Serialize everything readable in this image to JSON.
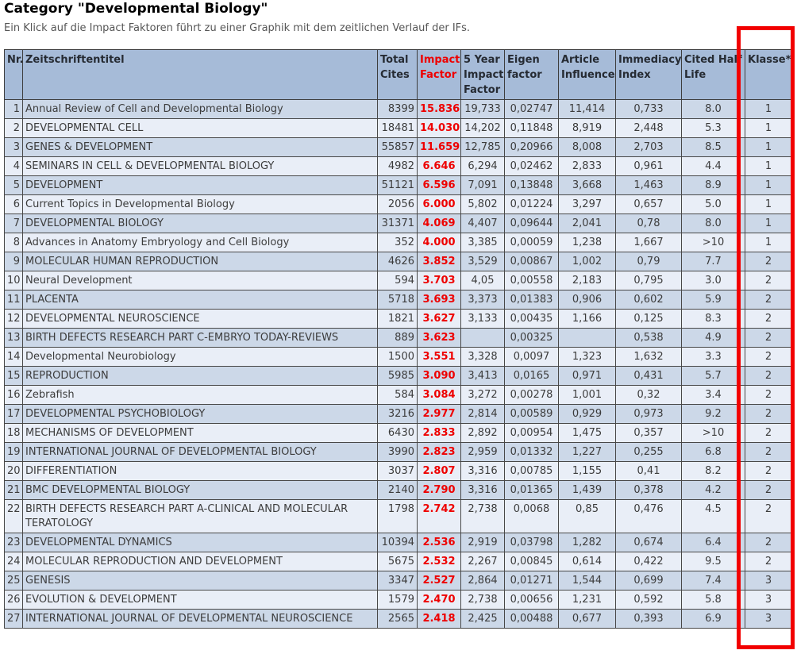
{
  "page": {
    "title": "Category \"Developmental Biology\"",
    "subtitle": "Ein Klick auf die Impact Faktoren führt zu einer Graphik mit dem zeitlichen Verlauf der IFs."
  },
  "colors": {
    "header_bg": "#a6bbd8",
    "row_odd_bg": "#ccd8e8",
    "row_even_bg": "#e9eef7",
    "impact_factor_red": "#ee0000",
    "highlight_box_red": "#f20000",
    "border": "#484848"
  },
  "annotation": {
    "type": "red-highlight-box",
    "highlighted_column": "Klasse*"
  },
  "table": {
    "columns": [
      {
        "id": "nr",
        "label": "Nr."
      },
      {
        "id": "title",
        "label": "Zeitschriftentitel"
      },
      {
        "id": "total_cites",
        "label": "Total Cites"
      },
      {
        "id": "impact_factor",
        "label": "Impact Factor"
      },
      {
        "id": "five_year_impact_factor",
        "label": "5 Year Impact Factor"
      },
      {
        "id": "eigenfactor",
        "label": "Eigen factor"
      },
      {
        "id": "article_influence",
        "label": "Article Influence"
      },
      {
        "id": "immediacy_index",
        "label": "Immediacy Index"
      },
      {
        "id": "cited_half_life",
        "label": "Cited Half Life"
      },
      {
        "id": "klasse",
        "label": "Klasse*"
      }
    ],
    "rows": [
      [
        "1",
        "Annual Review of Cell and Developmental Biology",
        "8399",
        "15.836",
        "19,733",
        "0,02747",
        "11,414",
        "0,733",
        "8.0",
        "1"
      ],
      [
        "2",
        "DEVELOPMENTAL CELL",
        "18481",
        "14.030",
        "14,202",
        "0,11848",
        "8,919",
        "2,448",
        "5.3",
        "1"
      ],
      [
        "3",
        "GENES & DEVELOPMENT",
        "55857",
        "11.659",
        "12,785",
        "0,20966",
        "8,008",
        "2,703",
        "8.5",
        "1"
      ],
      [
        "4",
        "SEMINARS IN CELL & DEVELOPMENTAL BIOLOGY",
        "4982",
        "6.646",
        "6,294",
        "0,02462",
        "2,833",
        "0,961",
        "4.4",
        "1"
      ],
      [
        "5",
        "DEVELOPMENT",
        "51121",
        "6.596",
        "7,091",
        "0,13848",
        "3,668",
        "1,463",
        "8.9",
        "1"
      ],
      [
        "6",
        "Current Topics in Developmental Biology",
        "2056",
        "6.000",
        "5,802",
        "0,01224",
        "3,297",
        "0,657",
        "5.0",
        "1"
      ],
      [
        "7",
        "DEVELOPMENTAL BIOLOGY",
        "31371",
        "4.069",
        "4,407",
        "0,09644",
        "2,041",
        "0,78",
        "8.0",
        "1"
      ],
      [
        "8",
        "Advances in Anatomy Embryology and Cell Biology",
        "352",
        "4.000",
        "3,385",
        "0,00059",
        "1,238",
        "1,667",
        ">10",
        "1"
      ],
      [
        "9",
        "MOLECULAR HUMAN REPRODUCTION",
        "4626",
        "3.852",
        "3,529",
        "0,00867",
        "1,002",
        "0,79",
        "7.7",
        "2"
      ],
      [
        "10",
        "Neural Development",
        "594",
        "3.703",
        "4,05",
        "0,00558",
        "2,183",
        "0,795",
        "3.0",
        "2"
      ],
      [
        "11",
        "PLACENTA",
        "5718",
        "3.693",
        "3,373",
        "0,01383",
        "0,906",
        "0,602",
        "5.9",
        "2"
      ],
      [
        "12",
        "DEVELOPMENTAL NEUROSCIENCE",
        "1821",
        "3.627",
        "3,133",
        "0,00435",
        "1,166",
        "0,125",
        "8.3",
        "2"
      ],
      [
        "13",
        "BIRTH DEFECTS RESEARCH PART C-EMBRYO TODAY-REVIEWS",
        "889",
        "3.623",
        "",
        "0,00325",
        "",
        "0,538",
        "4.9",
        "2"
      ],
      [
        "14",
        "Developmental Neurobiology",
        "1500",
        "3.551",
        "3,328",
        "0,0097",
        "1,323",
        "1,632",
        "3.3",
        "2"
      ],
      [
        "15",
        "REPRODUCTION",
        "5985",
        "3.090",
        "3,413",
        "0,0165",
        "0,971",
        "0,431",
        "5.7",
        "2"
      ],
      [
        "16",
        "Zebrafish",
        "584",
        "3.084",
        "3,272",
        "0,00278",
        "1,001",
        "0,32",
        "3.4",
        "2"
      ],
      [
        "17",
        "DEVELOPMENTAL PSYCHOBIOLOGY",
        "3216",
        "2.977",
        "2,814",
        "0,00589",
        "0,929",
        "0,973",
        "9.2",
        "2"
      ],
      [
        "18",
        "MECHANISMS OF DEVELOPMENT",
        "6430",
        "2.833",
        "2,892",
        "0,00954",
        "1,475",
        "0,357",
        ">10",
        "2"
      ],
      [
        "19",
        "INTERNATIONAL JOURNAL OF DEVELOPMENTAL BIOLOGY",
        "3990",
        "2.823",
        "2,959",
        "0,01332",
        "1,227",
        "0,255",
        "6.8",
        "2"
      ],
      [
        "20",
        "DIFFERENTIATION",
        "3037",
        "2.807",
        "3,316",
        "0,00785",
        "1,155",
        "0,41",
        "8.2",
        "2"
      ],
      [
        "21",
        "BMC DEVELOPMENTAL BIOLOGY",
        "2140",
        "2.790",
        "3,316",
        "0,01365",
        "1,439",
        "0,378",
        "4.2",
        "2"
      ],
      [
        "22",
        "BIRTH DEFECTS RESEARCH PART A-CLINICAL AND MOLECULAR TERATOLOGY",
        "1798",
        "2.742",
        "2,738",
        "0,0068",
        "0,85",
        "0,476",
        "4.5",
        "2"
      ],
      [
        "23",
        "DEVELOPMENTAL DYNAMICS",
        "10394",
        "2.536",
        "2,919",
        "0,03798",
        "1,282",
        "0,674",
        "6.4",
        "2"
      ],
      [
        "24",
        "MOLECULAR REPRODUCTION AND DEVELOPMENT",
        "5675",
        "2.532",
        "2,267",
        "0,00845",
        "0,614",
        "0,422",
        "9.5",
        "2"
      ],
      [
        "25",
        "GENESIS",
        "3347",
        "2.527",
        "2,864",
        "0,01271",
        "1,544",
        "0,699",
        "7.4",
        "3"
      ],
      [
        "26",
        "EVOLUTION & DEVELOPMENT",
        "1579",
        "2.470",
        "2,738",
        "0,00656",
        "1,231",
        "0,592",
        "5.8",
        "3"
      ],
      [
        "27",
        "INTERNATIONAL JOURNAL OF DEVELOPMENTAL NEUROSCIENCE",
        "2565",
        "2.418",
        "2,425",
        "0,00488",
        "0,677",
        "0,393",
        "6.9",
        "3"
      ]
    ]
  }
}
